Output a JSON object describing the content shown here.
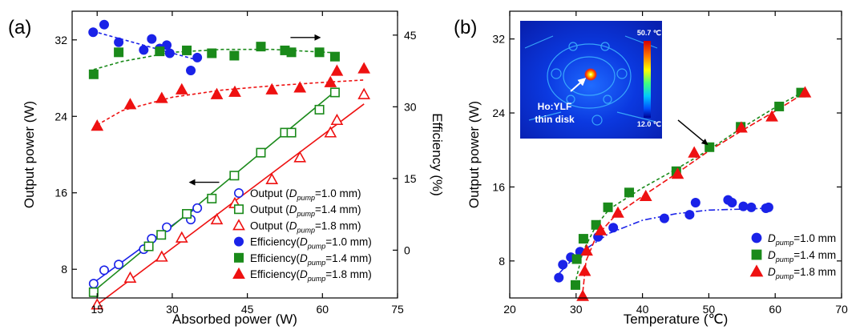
{
  "colors": {
    "blue": "#1a22e8",
    "green": "#1a8a1a",
    "red": "#ee1111"
  },
  "chart_data": [
    {
      "type": "scatter",
      "panel_label": "(a)",
      "xlabel": "Absorbed power (W)",
      "ylabel": "Output power (W)",
      "y2label": "Efficiency (%)",
      "xlim": [
        10,
        75
      ],
      "ylim": [
        5,
        35
      ],
      "y2lim": [
        -10,
        50
      ],
      "xticks": [
        15,
        30,
        45,
        60,
        75
      ],
      "yticks": [
        8,
        16,
        24,
        32
      ],
      "y2ticks": [
        0,
        15,
        30,
        45
      ],
      "legend_position": "bottom-right",
      "series": [
        {
          "name": "Output (Dpump=1.0 mm)",
          "name_parts": [
            "Output (",
            "D",
            "pump",
            "=1.0 mm)"
          ],
          "axis": "left",
          "marker": "circle",
          "filled": false,
          "color": "blue",
          "x": [
            14.3,
            16.4,
            19.3,
            24.3,
            25.9,
            28.9,
            33.7,
            35.0
          ],
          "y": [
            6.5,
            7.9,
            8.5,
            10.1,
            11.2,
            12.4,
            13.2,
            14.4
          ],
          "fit": [
            [
              14.3,
              6.6
            ],
            [
              35.0,
              14.5
            ]
          ]
        },
        {
          "name": "Output (Dpump=1.4 mm)",
          "name_parts": [
            "Output (",
            "D",
            "pump",
            "=1.4 mm)"
          ],
          "axis": "left",
          "marker": "square",
          "filled": false,
          "color": "green",
          "x": [
            14.3,
            25.3,
            27.8,
            32.9,
            37.9,
            42.4,
            47.7,
            52.5,
            53.8,
            59.4,
            62.5
          ],
          "y": [
            5.6,
            10.4,
            11.6,
            13.8,
            15.4,
            17.8,
            20.2,
            22.3,
            22.3,
            24.7,
            26.5
          ],
          "fit": [
            [
              14.3,
              5.7
            ],
            [
              62.5,
              26.6
            ]
          ]
        },
        {
          "name": "Output (Dpump=1.8 mm)",
          "name_parts": [
            "Output (",
            "D",
            "pump",
            "=1.8 mm)"
          ],
          "axis": "left",
          "marker": "triangle",
          "filled": false,
          "color": "red",
          "x": [
            15.0,
            21.6,
            27.9,
            31.9,
            38.9,
            42.5,
            49.9,
            55.5,
            61.6,
            62.9,
            68.3
          ],
          "y": [
            4.3,
            7.1,
            9.3,
            11.3,
            13.2,
            14.9,
            17.4,
            19.7,
            22.3,
            23.6,
            26.3
          ],
          "fit": [
            [
              15.0,
              4.3
            ],
            [
              68.3,
              25.3
            ]
          ]
        },
        {
          "name": "Efficiency(Dpump=1.0 mm)",
          "name_parts": [
            "Efficiency(",
            "D",
            "pump",
            "=1.0 mm)"
          ],
          "axis": "right",
          "marker": "circle",
          "filled": true,
          "color": "blue",
          "x": [
            14.2,
            16.4,
            19.3,
            24.3,
            25.9,
            27.5,
            28.9,
            29.5,
            33.7,
            35.0
          ],
          "y": [
            45.6,
            47.2,
            43.5,
            41.9,
            44.2,
            42.2,
            42.9,
            41.2,
            37.6,
            40.3
          ],
          "fit": [
            [
              14.2,
              45.8
            ],
            [
              35.0,
              39.8
            ]
          ]
        },
        {
          "name": "Efficiency(Dpump=1.4 mm)",
          "name_parts": [
            "Efficiency(",
            "D",
            "pump",
            "=1.4 mm)"
          ],
          "axis": "right",
          "marker": "square",
          "filled": true,
          "color": "green",
          "x": [
            14.3,
            19.3,
            27.5,
            32.9,
            37.9,
            42.4,
            47.7,
            52.5,
            53.8,
            59.4,
            62.5
          ],
          "y": [
            36.8,
            41.4,
            41.6,
            41.8,
            41.2,
            40.7,
            42.6,
            41.8,
            41.4,
            41.4,
            40.5
          ],
          "fit": [
            [
              14.3,
              37.8
            ],
            [
              20,
              39.5
            ],
            [
              30,
              41.4
            ],
            [
              40,
              42.0
            ],
            [
              50,
              42.0
            ],
            [
              62.5,
              41.3
            ]
          ]
        },
        {
          "name": "Efficiency(Dpump=1.8 mm)",
          "name_parts": [
            "Efficiency(",
            "D",
            "pump",
            "=1.8 mm)"
          ],
          "axis": "right",
          "marker": "triangle",
          "filled": true,
          "color": "red",
          "x": [
            15.0,
            21.6,
            27.9,
            31.9,
            38.9,
            42.5,
            49.9,
            55.5,
            61.6,
            62.9,
            68.3
          ],
          "y": [
            26.0,
            30.5,
            31.8,
            33.6,
            32.6,
            33.1,
            33.6,
            34.0,
            35.1,
            37.5,
            38.0
          ],
          "fit": [
            [
              15.0,
              26.2
            ],
            [
              20,
              29.2
            ],
            [
              30,
              32.0
            ],
            [
              40,
              33.5
            ],
            [
              50,
              34.4
            ],
            [
              60,
              35.1
            ],
            [
              68.3,
              35.6
            ]
          ]
        }
      ],
      "annotations": [
        {
          "type": "arrow",
          "direction": "left",
          "x": 36.5,
          "y": 17.1,
          "axis": "left"
        },
        {
          "type": "arrow",
          "direction": "right",
          "x": 56.5,
          "y": 44.5,
          "axis": "right"
        }
      ]
    },
    {
      "type": "scatter",
      "panel_label": "(b)",
      "xlabel": "Temperature (℃)",
      "ylabel": "Output power (W)",
      "xlim": [
        20,
        70
      ],
      "ylim": [
        4,
        35
      ],
      "xticks": [
        20,
        30,
        40,
        50,
        60,
        70
      ],
      "yticks": [
        8,
        16,
        24,
        32
      ],
      "legend_position": "bottom-right",
      "series": [
        {
          "name": "Dpump=1.0 mm",
          "name_parts": [
            "",
            "D",
            "pump",
            "=1.0 mm"
          ],
          "marker": "circle",
          "filled": true,
          "color": "blue",
          "x": [
            27.4,
            28.0,
            29.2,
            30.6,
            33.3,
            35.6,
            43.3,
            47.1,
            48.0,
            52.9,
            53.5,
            55.2,
            56.4,
            58.6,
            59.0
          ],
          "y": [
            6.2,
            7.6,
            8.4,
            9.0,
            10.6,
            11.6,
            12.6,
            13.0,
            14.3,
            14.6,
            14.3,
            13.9,
            13.8,
            13.7,
            13.8
          ],
          "fit": [
            [
              27.5,
              6.7
            ],
            [
              30,
              8.6
            ],
            [
              35,
              11.0
            ],
            [
              40,
              12.4
            ],
            [
              45,
              13.1
            ],
            [
              50,
              13.5
            ],
            [
              55,
              13.6
            ],
            [
              59,
              13.7
            ]
          ]
        },
        {
          "name": "Dpump=1.4 mm",
          "name_parts": [
            "",
            "D",
            "pump",
            "=1.4 mm"
          ],
          "marker": "square",
          "filled": true,
          "color": "green",
          "x": [
            29.9,
            30.1,
            31.1,
            33.0,
            34.8,
            38.0,
            45.1,
            50.1,
            54.8,
            60.6,
            63.9
          ],
          "y": [
            5.4,
            8.2,
            10.4,
            11.9,
            13.8,
            15.4,
            17.7,
            20.3,
            22.5,
            24.7,
            26.2
          ],
          "fit": [
            [
              30.0,
              6.0
            ],
            [
              31.0,
              9.0
            ],
            [
              33.0,
              11.8
            ],
            [
              35.0,
              13.6
            ],
            [
              40.0,
              15.9
            ],
            [
              45.0,
              17.9
            ],
            [
              50.0,
              20.0
            ],
            [
              55.0,
              22.4
            ],
            [
              60.0,
              24.6
            ],
            [
              64.0,
              26.2
            ]
          ]
        },
        {
          "name": "Dpump=1.8 mm",
          "name_parts": [
            "",
            "D",
            "pump",
            "=1.8 mm"
          ],
          "marker": "triangle",
          "filled": true,
          "color": "red",
          "x": [
            31.0,
            31.3,
            31.6,
            33.7,
            36.3,
            40.5,
            45.3,
            47.8,
            54.9,
            59.5,
            64.5
          ],
          "y": [
            4.2,
            6.9,
            9.1,
            11.3,
            13.2,
            15.0,
            17.4,
            19.7,
            22.4,
            23.6,
            26.2
          ],
          "fit": [
            [
              31.0,
              4.6
            ],
            [
              31.5,
              8.0
            ],
            [
              33.0,
              10.6
            ],
            [
              36.0,
              13.0
            ],
            [
              40.0,
              15.0
            ],
            [
              45.0,
              17.4
            ],
            [
              50.0,
              19.9
            ],
            [
              55.0,
              22.1
            ],
            [
              60.0,
              24.2
            ],
            [
              64.5,
              26.2
            ]
          ]
        }
      ],
      "annotations": [
        {
          "type": "arrow",
          "direction": "down-right",
          "x": 48.5,
          "y": 21.5
        }
      ],
      "inset": {
        "colorbar_max": "50.7 ℃",
        "colorbar_min": "12.0 ℃",
        "label": [
          "Ho:YLF",
          "thin disk"
        ]
      }
    }
  ]
}
